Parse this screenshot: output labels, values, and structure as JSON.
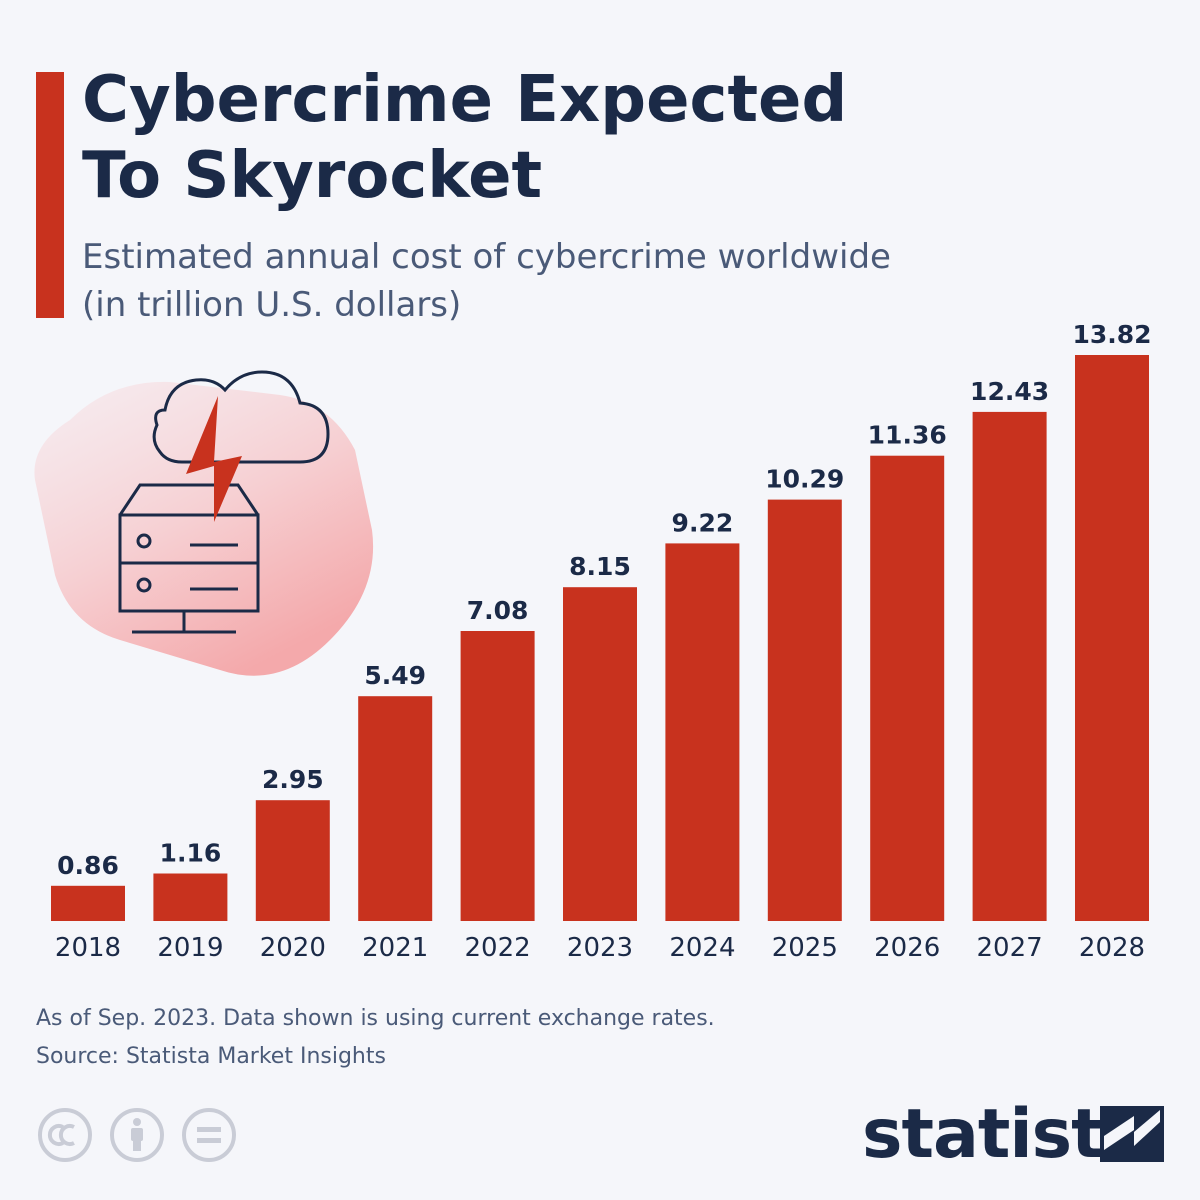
{
  "header": {
    "title_line1": "Cybercrime Expected",
    "title_line2": "To Skyrocket",
    "subtitle_line1": "Estimated annual cost of cybercrime worldwide",
    "subtitle_line2": "(in trillion U.S. dollars)"
  },
  "footer": {
    "note": "As of Sep. 2023. Data shown is using current exchange rates.",
    "source": "Source: Statista Market Insights",
    "brand": "statista"
  },
  "colors": {
    "bar": "#c8321e",
    "accent": "#c8321e",
    "title": "#1b2a47",
    "text": "#4a5a78",
    "background": "#f5f6fa"
  },
  "icons": [
    "cloud-icon",
    "lightning-bolt-icon",
    "server-icon",
    "creative-commons-icon",
    "attribution-icon",
    "no-derivatives-icon",
    "statista-logo-icon"
  ],
  "chart_data": {
    "type": "bar",
    "title": "Cybercrime Expected To Skyrocket",
    "subtitle": "Estimated annual cost of cybercrime worldwide (in trillion U.S. dollars)",
    "categories": [
      "2018",
      "2019",
      "2020",
      "2021",
      "2022",
      "2023",
      "2024",
      "2025",
      "2026",
      "2027",
      "2028"
    ],
    "values": [
      0.86,
      1.16,
      2.95,
      5.49,
      7.08,
      8.15,
      9.22,
      10.29,
      11.36,
      12.43,
      13.82
    ],
    "value_labels": [
      "0.86",
      "1.16",
      "2.95",
      "5.49",
      "7.08",
      "8.15",
      "9.22",
      "10.29",
      "11.36",
      "12.43",
      "13.82"
    ],
    "xlabel": "",
    "ylabel": "",
    "ylim": [
      0,
      13.82
    ],
    "grid": false,
    "legend": "none",
    "data_labels": "above bars"
  }
}
